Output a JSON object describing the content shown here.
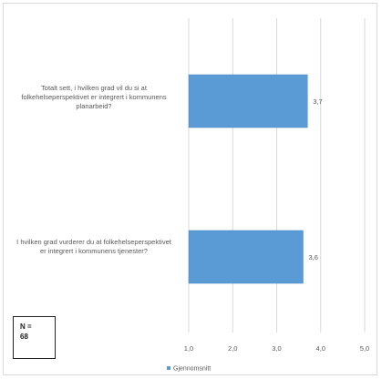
{
  "chart_data": {
    "type": "bar",
    "orientation": "horizontal",
    "categories": [
      "Totalt sett, i hvilken grad vil du si at folkehelseperspektivet er integrert i kommunens planarbeid?",
      "I hvilken grad vurderer du at folkehelseperspektivet er integrert i kommunens tjenester?"
    ],
    "series": [
      {
        "name": "Gjennomsnitt",
        "values": [
          3.7,
          3.6
        ],
        "labels": [
          "3,7",
          "3,6"
        ],
        "color": "#5b9bd5"
      }
    ],
    "xlim": [
      1,
      5
    ],
    "xticks": [
      1,
      2,
      3,
      4,
      5
    ],
    "xtick_labels": [
      "1,0",
      "2,0",
      "3,0",
      "4,0",
      "5,0"
    ],
    "grid": true,
    "legend_position": "bottom",
    "annotation": "N =\n68",
    "colors": {
      "bar": "#5b9bd5",
      "grid": "#d9d9d9",
      "text": "#595959"
    }
  }
}
